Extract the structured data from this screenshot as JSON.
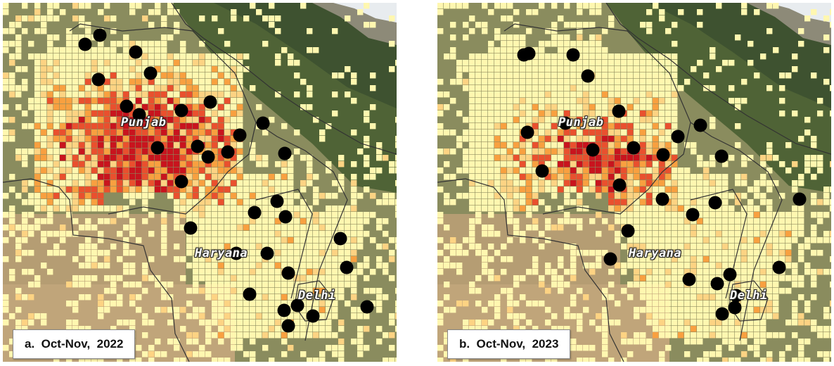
{
  "panels": [
    {
      "caption": "a.  Oct-Nov,  2022",
      "labels": {
        "punjab": "Punjab",
        "haryana": "Haryana",
        "delhi": "Delhi"
      }
    },
    {
      "caption": "b.  Oct-Nov,  2023",
      "labels": {
        "punjab": "Punjab",
        "haryana": "Haryana",
        "delhi": "Delhi"
      }
    }
  ],
  "legend_colors": {
    "low": "#fff7b0",
    "moderate": "#fdd383",
    "high": "#f8a040",
    "very_high": "#e9502e",
    "extreme": "#c8141e",
    "station_marker": "#000000"
  }
}
